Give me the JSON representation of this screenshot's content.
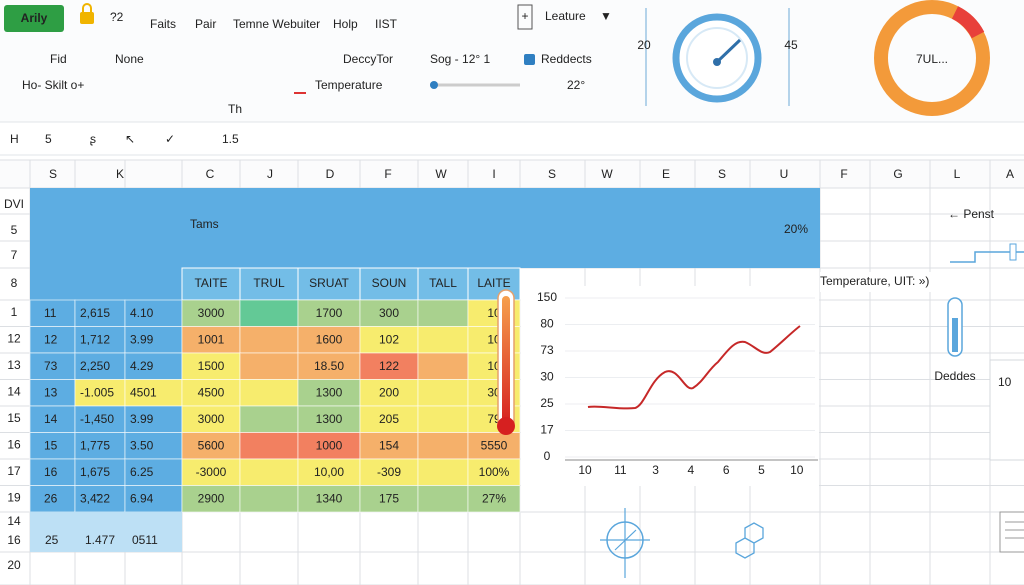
{
  "ribbon": {
    "app_button": "Arily",
    "quick": "?2",
    "menu": [
      "Faits",
      "Pair",
      "Temne Webuiter",
      "Holp",
      "IIST"
    ],
    "feature": "Leature",
    "row2": [
      "Fid",
      "None",
      "DeccyTor",
      "Sog - 12° 1",
      "Reddects"
    ],
    "row3": [
      "Ho- Skilt o+",
      "Temperature",
      "22°"
    ],
    "small": "Th"
  },
  "gauges": {
    "left": "20",
    "right": "45",
    "donut": "7UL..."
  },
  "formula_bar": {
    "cell": "H",
    "items": [
      "5",
      "ʂ",
      "↖",
      "✓"
    ],
    "value": "1.5"
  },
  "columns": [
    "S",
    "K",
    "C",
    "J",
    "D",
    "F",
    "W",
    "I",
    "S",
    "W",
    "E",
    "S",
    "U",
    "F",
    "G",
    "L",
    "A"
  ],
  "row_labels": [
    "DVI",
    "5",
    "7",
    "8",
    "1",
    "12",
    "13",
    "14",
    "15",
    "16",
    "17",
    "19",
    "14",
    "16",
    "20"
  ],
  "banner": {
    "title": "Tams",
    "value": "20%"
  },
  "table": {
    "header": [
      "TAITE",
      "TRUL",
      "SRUAT",
      "SOUN",
      "TALL",
      "LAITE"
    ],
    "rows": [
      {
        "left": [
          "11",
          "2,615",
          "4.10"
        ],
        "values": [
          "3000",
          "1700",
          "300",
          "10"
        ]
      },
      {
        "left": [
          "12",
          "1,712",
          "3.99"
        ],
        "values": [
          "1001",
          "1600",
          "102",
          "10"
        ]
      },
      {
        "left": [
          "73",
          "2,250",
          "4.29"
        ],
        "values": [
          "1500",
          "18.50",
          "122",
          "10"
        ]
      },
      {
        "left": [
          "13",
          "-1.005",
          "4501"
        ],
        "values": [
          "4500",
          "1300",
          "200",
          "30"
        ]
      },
      {
        "left": [
          "14",
          "-1,450",
          "3.99"
        ],
        "values": [
          "3000",
          "1300",
          "205",
          "79"
        ]
      },
      {
        "left": [
          "15",
          "1,775",
          "3.50"
        ],
        "values": [
          "5600",
          "1000",
          "154",
          "5550"
        ]
      },
      {
        "left": [
          "16",
          "1,675",
          "6.25"
        ],
        "values": [
          "-3000",
          "10,00",
          "-309",
          "100%"
        ]
      },
      {
        "left": [
          "26",
          "3,4̃22",
          "6.94"
        ],
        "values": [
          "2900",
          "1340",
          "175",
          "27%"
        ]
      }
    ],
    "total": [
      "25",
      "1.477",
      "0511"
    ]
  },
  "chart": {
    "yticks": [
      "150",
      "80",
      "73",
      "30",
      "25",
      "17",
      "0"
    ],
    "xticks": [
      "10",
      "11",
      "3",
      "4",
      "6",
      "5",
      "10"
    ]
  },
  "side": {
    "link": "← Penst",
    "caption": "Temperature, UIT: »)",
    "icon_label": "Deddes",
    "panel_value": "10"
  }
}
